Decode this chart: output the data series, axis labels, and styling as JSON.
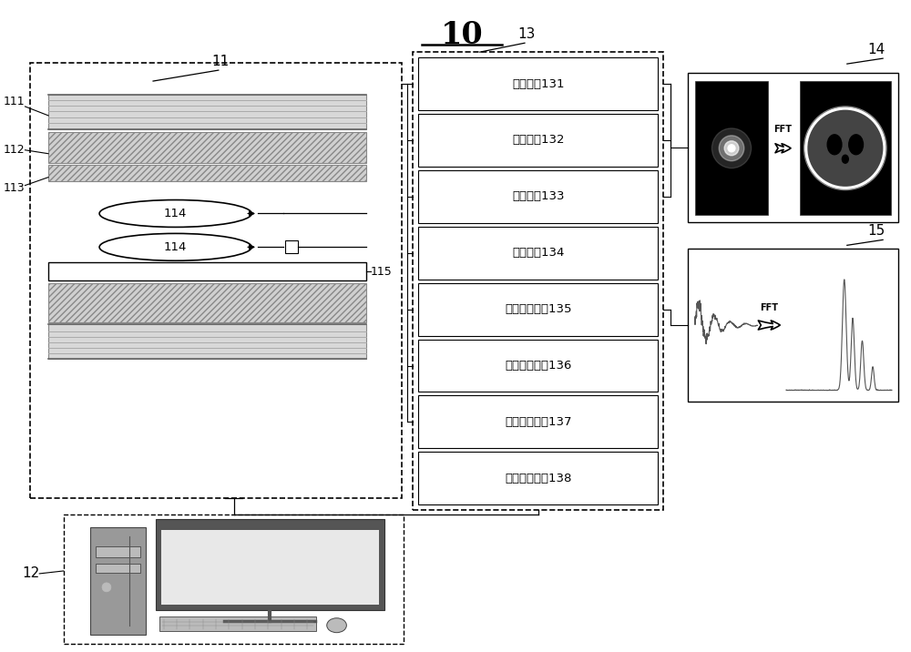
{
  "title": "10",
  "bg_color": "#ffffff",
  "labels": {
    "L10": "10",
    "L11": "11",
    "L12": "12",
    "L13": "13",
    "L14": "14",
    "L15": "15",
    "L111": "111",
    "L112": "112",
    "L113": "113",
    "L114": "114",
    "L115": "115"
  },
  "boxes": [
    "梯度功放131",
    "射频功放132",
    "接收单元133",
    "门控单元134",
    "射频控制单元135",
    "梯度控制单元136",
    "病床控制单元137",
    "序列控制单元138"
  ]
}
